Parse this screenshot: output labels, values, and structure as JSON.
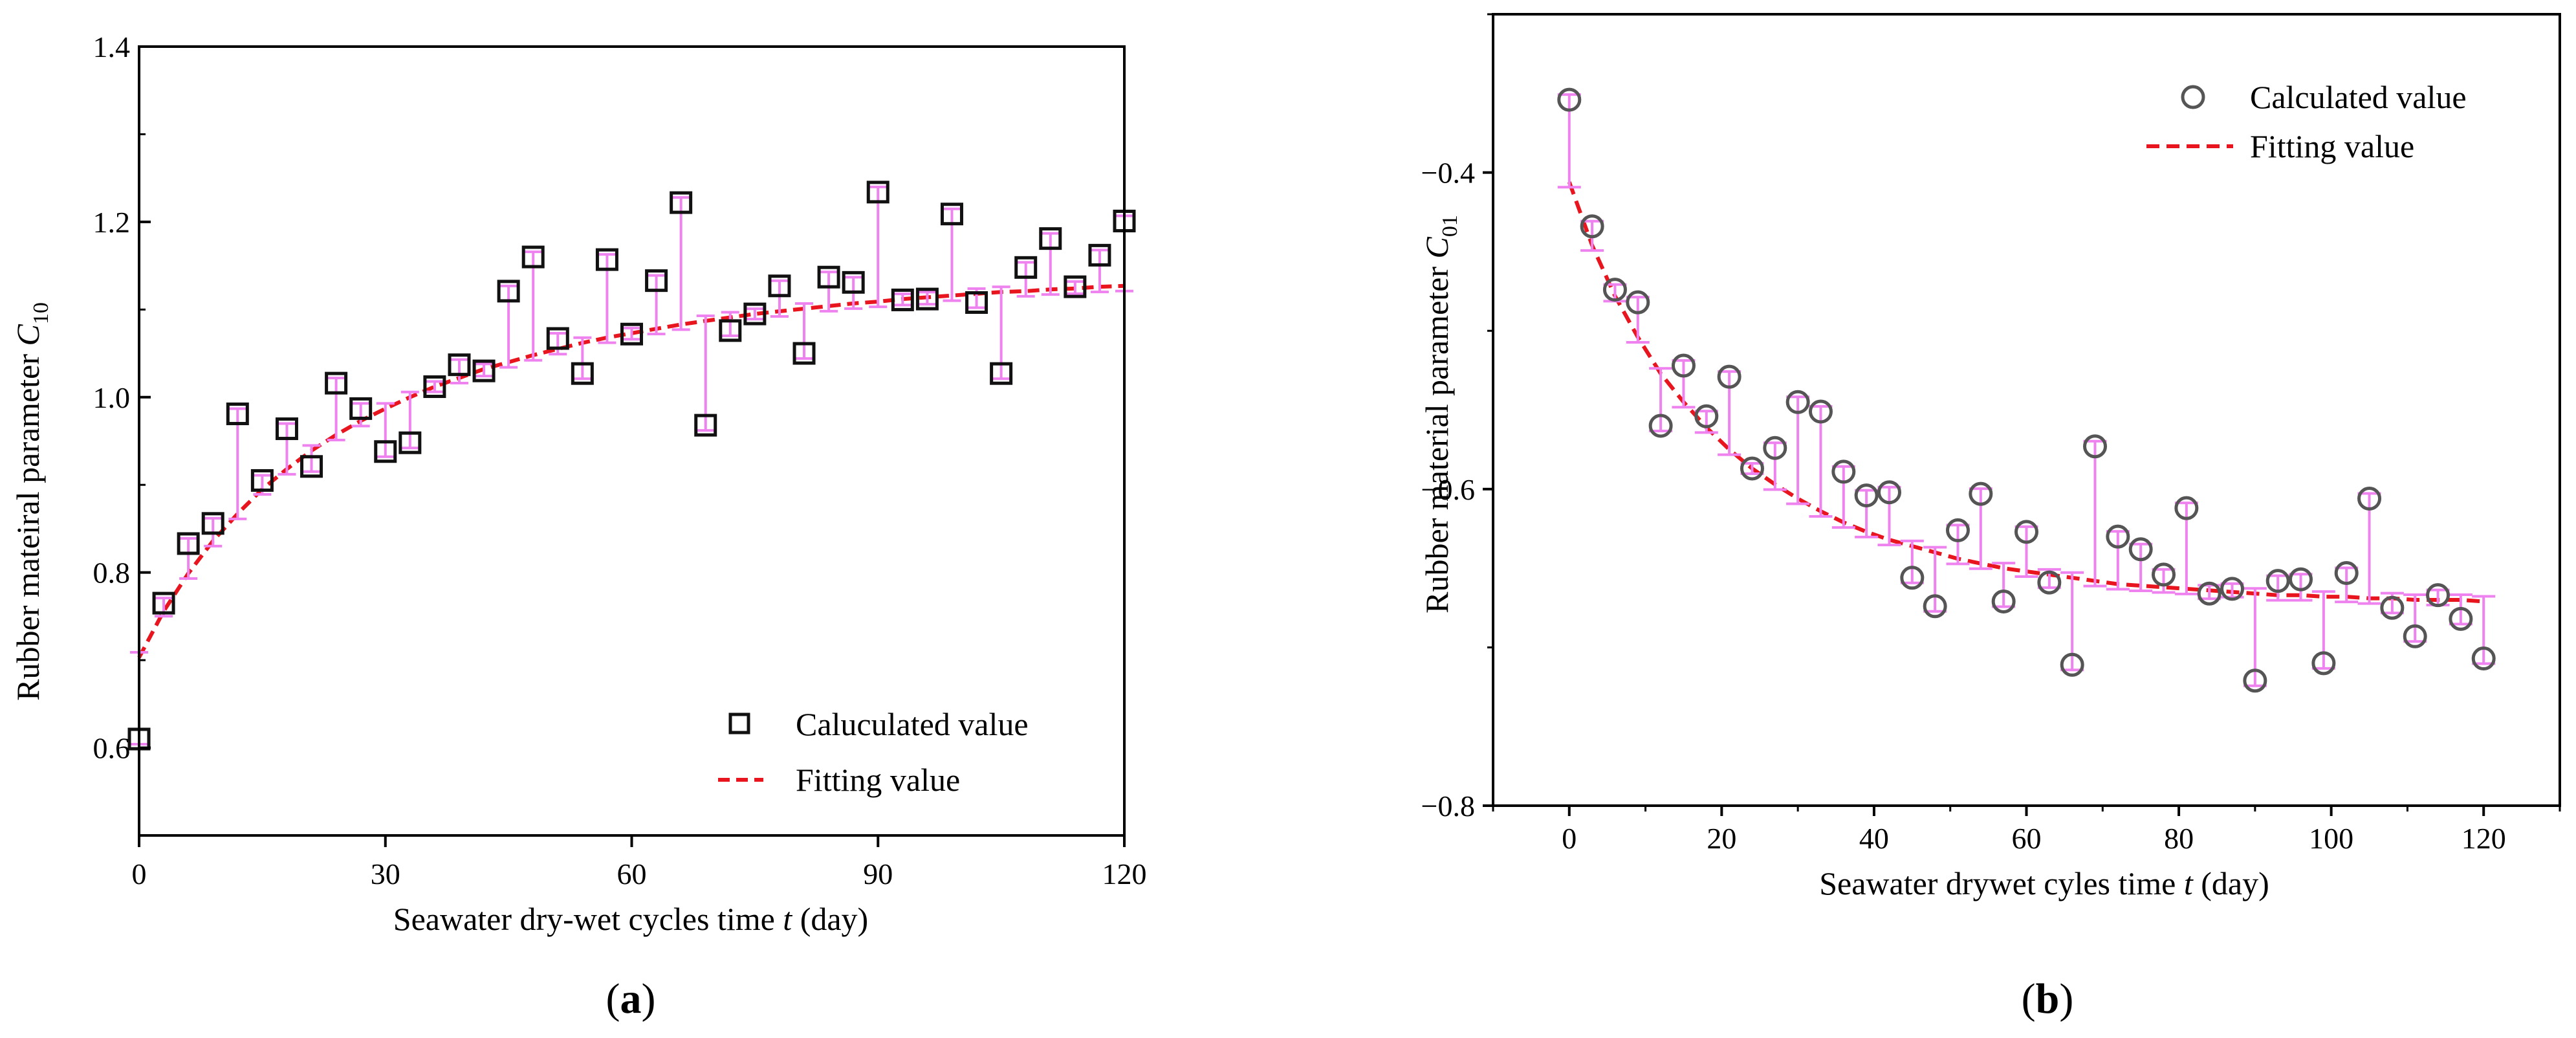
{
  "chart_data": [
    {
      "type": "scatter",
      "panel": "(a)",
      "panel_letter": "a",
      "xlabel_prefix": "Seawater dry-wet cycles time ",
      "xlabel_var": "t",
      "xlabel_suffix": " (day)",
      "ylabel_prefix": "Rubber mateiral parameter ",
      "ylabel_var": "C",
      "ylabel_sub": "10",
      "xlim": [
        0,
        120
      ],
      "ylim": [
        0.5,
        1.4
      ],
      "xticks": [
        0,
        30,
        60,
        90,
        120
      ],
      "xtick_labels": [
        "0",
        "30",
        "60",
        "90",
        "120"
      ],
      "yticks": [
        0.6,
        0.8,
        1.0,
        1.2,
        1.4
      ],
      "ytick_labels": [
        "0.6",
        "0.8",
        "1.0",
        "1.2",
        "1.4"
      ],
      "legend_position": "bottom-right",
      "series": [
        {
          "name": "Caluculated value",
          "marker": "square",
          "color": "#111111",
          "x": [
            0,
            3,
            6,
            9,
            12,
            15,
            18,
            21,
            24,
            27,
            30,
            33,
            36,
            39,
            42,
            45,
            48,
            51,
            54,
            57,
            60,
            63,
            66,
            69,
            72,
            75,
            78,
            81,
            84,
            87,
            90,
            93,
            96,
            99,
            102,
            105,
            108,
            111,
            114,
            117,
            120
          ],
          "y": [
            0.61,
            0.765,
            0.833,
            0.856,
            0.981,
            0.905,
            0.964,
            0.921,
            1.016,
            0.987,
            0.938,
            0.948,
            1.012,
            1.037,
            1.03,
            1.121,
            1.16,
            1.067,
            1.027,
            1.157,
            1.072,
            1.133,
            1.222,
            0.968,
            1.076,
            1.095,
            1.127,
            1.05,
            1.137,
            1.131,
            1.234,
            1.111,
            1.112,
            1.209,
            1.108,
            1.027,
            1.148,
            1.181,
            1.126,
            1.162,
            1.201
          ],
          "fit": [
            0.703,
            0.756,
            0.799,
            0.836,
            0.867,
            0.895,
            0.918,
            0.939,
            0.957,
            0.973,
            0.987,
            1.0,
            1.012,
            1.022,
            1.032,
            1.04,
            1.048,
            1.055,
            1.062,
            1.068,
            1.073,
            1.078,
            1.083,
            1.087,
            1.091,
            1.095,
            1.098,
            1.101,
            1.104,
            1.107,
            1.109,
            1.112,
            1.114,
            1.116,
            1.118,
            1.12,
            1.121,
            1.123,
            1.124,
            1.126,
            1.127
          ]
        },
        {
          "name": "Fitting value",
          "line": "dashed",
          "color": "#e8141e"
        }
      ],
      "error_bar_color": "#ee82ee"
    },
    {
      "type": "scatter",
      "panel": "(b)",
      "panel_letter": "b",
      "xlabel_prefix": "Seawater drywet cyles time ",
      "xlabel_var": "t",
      "xlabel_suffix": " (day)",
      "ylabel_prefix": "Rubber material parameter ",
      "ylabel_var": "C",
      "ylabel_sub": "01",
      "xlim": [
        -10,
        130
      ],
      "ylim": [
        -0.8,
        -0.3
      ],
      "xticks": [
        0,
        20,
        40,
        60,
        80,
        100,
        120
      ],
      "xtick_labels": [
        "0",
        "20",
        "40",
        "60",
        "80",
        "100",
        "120"
      ],
      "yticks": [
        -0.8,
        -0.6,
        -0.4
      ],
      "ytick_labels": [
        "−0.8",
        "−0.6",
        "−0.4"
      ],
      "legend_position": "top-right",
      "series": [
        {
          "name": "Calculated value",
          "marker": "circle",
          "color": "#555555",
          "x": [
            0,
            3,
            6,
            9,
            12,
            15,
            18,
            21,
            24,
            27,
            30,
            33,
            36,
            39,
            42,
            45,
            48,
            51,
            54,
            57,
            60,
            63,
            66,
            69,
            72,
            75,
            78,
            81,
            84,
            87,
            90,
            93,
            96,
            99,
            102,
            105,
            108,
            111,
            114,
            117,
            120
          ],
          "y": [
            -0.354,
            -0.434,
            -0.474,
            -0.482,
            -0.56,
            -0.522,
            -0.554,
            -0.529,
            -0.587,
            -0.574,
            -0.545,
            -0.551,
            -0.589,
            -0.604,
            -0.602,
            -0.656,
            -0.674,
            -0.626,
            -0.603,
            -0.671,
            -0.627,
            -0.659,
            -0.711,
            -0.573,
            -0.63,
            -0.638,
            -0.654,
            -0.612,
            -0.666,
            -0.663,
            -0.721,
            -0.658,
            -0.657,
            -0.71,
            -0.653,
            -0.606,
            -0.675,
            -0.693,
            -0.667,
            -0.682,
            -0.707
          ],
          "fit": [
            -0.406,
            -0.446,
            -0.478,
            -0.504,
            -0.527,
            -0.545,
            -0.561,
            -0.575,
            -0.587,
            -0.597,
            -0.606,
            -0.614,
            -0.621,
            -0.627,
            -0.632,
            -0.636,
            -0.64,
            -0.644,
            -0.647,
            -0.65,
            -0.652,
            -0.654,
            -0.656,
            -0.658,
            -0.66,
            -0.661,
            -0.662,
            -0.663,
            -0.664,
            -0.665,
            -0.666,
            -0.667,
            -0.667,
            -0.668,
            -0.668,
            -0.669,
            -0.669,
            -0.67,
            -0.67,
            -0.67,
            -0.671
          ]
        },
        {
          "name": "Fitting value",
          "line": "dashed",
          "color": "#e8141e"
        }
      ],
      "error_bar_color": "#ee82ee"
    }
  ]
}
